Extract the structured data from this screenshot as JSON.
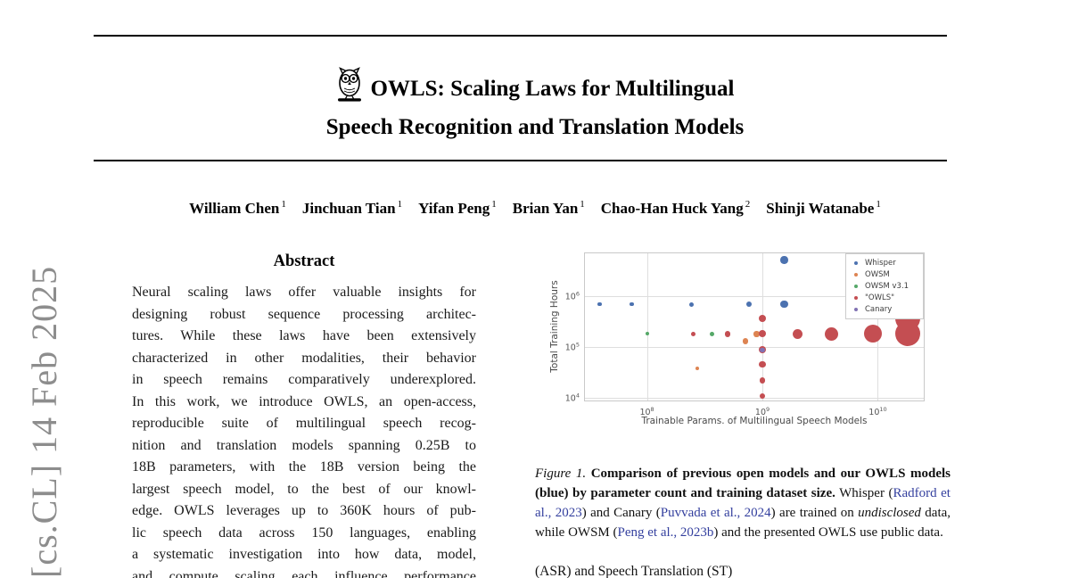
{
  "watermark": "[cs.CL]  14 Feb 2025",
  "title": {
    "line1": "OWLS: Scaling Laws for Multilingual",
    "line2": "Speech Recognition and Translation Models"
  },
  "authors": [
    {
      "name": "William Chen",
      "sup": "1"
    },
    {
      "name": "Jinchuan Tian",
      "sup": "1"
    },
    {
      "name": "Yifan Peng",
      "sup": "1"
    },
    {
      "name": "Brian Yan",
      "sup": "1"
    },
    {
      "name": "Chao-Han Huck Yang",
      "sup": "2"
    },
    {
      "name": "Shinji Watanabe",
      "sup": "1"
    }
  ],
  "abstract": {
    "heading": "Abstract",
    "lines": [
      "Neural scaling laws offer valuable insights for",
      "designing robust sequence processing architec-",
      "tures. While these laws have been extensively",
      "characterized in other modalities, their behavior",
      "in speech remains comparatively underexplored.",
      "In this work, we introduce OWLS, an open-access,",
      "reproducible suite of multilingual speech recog-",
      "nition and translation models spanning 0.25B to",
      "18B parameters, with the 18B version being the",
      "largest speech model, to the best of our knowl-",
      "edge. OWLS leverages up to 360K hours of pub-",
      "lic speech data across 150 languages, enabling",
      "a systematic investigation into how data, model,",
      "and compute scaling each influence performance"
    ]
  },
  "figure_caption": {
    "segments": [
      {
        "text": "Figure 1.",
        "style": "figlabel"
      },
      {
        "text": " ",
        "style": "bold"
      },
      {
        "text": "Comparison of previous open models and our OWLS models (blue) by parameter count and training dataset size.",
        "style": "bold"
      },
      {
        "text": " Whisper (",
        "style": "normal"
      },
      {
        "text": "Radford et al., 2023",
        "style": "link"
      },
      {
        "text": ") and Canary (",
        "style": "normal"
      },
      {
        "text": "Puvvada et al., 2024",
        "style": "link"
      },
      {
        "text": ") are trained on ",
        "style": "normal"
      },
      {
        "text": "undisclosed",
        "style": "italic"
      },
      {
        "text": " data, while OWSM (",
        "style": "normal"
      },
      {
        "text": "Peng et al., 2023b",
        "style": "link"
      },
      {
        "text": ") and the presented OWLS use public data.",
        "style": "normal"
      }
    ]
  },
  "partial_text": "(ASR) and Speech Translation (ST)",
  "colors": {
    "link": "#333f9e",
    "watermark_gray": "#8d8d8d",
    "rule_black": "#000000"
  },
  "chart_data": {
    "type": "scatter",
    "title": "",
    "xlabel": "Trainable Params. of Multilingual Speech Models",
    "ylabel": "Total Training Hours",
    "x_scale": "log",
    "y_scale": "log",
    "x_range": [
      29000000.0,
      25000000000.0
    ],
    "y_range": [
      9000,
      6760000.0
    ],
    "x_ticks": [
      100000000.0,
      1000000000.0,
      10000000000.0
    ],
    "y_ticks": [
      10000.0,
      100000.0,
      1000000.0
    ],
    "x_tick_labels": [
      "10^8",
      "10^9",
      "10^10"
    ],
    "y_tick_labels": [
      "10^4",
      "10^5",
      "10^6"
    ],
    "grid": true,
    "legend_position": "upper right",
    "series": [
      {
        "name": "Whisper",
        "color": "#4c72b0",
        "points": [
          {
            "x": 39000000.0,
            "y": 680000.0,
            "r": 2.2
          },
          {
            "x": 74000000.0,
            "y": 680000.0,
            "r": 2.2
          },
          {
            "x": 244000000.0,
            "y": 680000.0,
            "r": 2.5
          },
          {
            "x": 769000000.0,
            "y": 680000.0,
            "r": 3.2
          },
          {
            "x": 1550000000.0,
            "y": 680000.0,
            "r": 4.2
          },
          {
            "x": 1550000000.0,
            "y": 5000000.0,
            "r": 4.2
          }
        ]
      },
      {
        "name": "OWSM",
        "color": "#dd8452",
        "points": [
          {
            "x": 272000000.0,
            "y": 38000.0,
            "r": 2.2
          },
          {
            "x": 712000000.0,
            "y": 129000.0,
            "r": 3.2
          },
          {
            "x": 889000000.0,
            "y": 180000.0,
            "r": 3.2
          }
        ]
      },
      {
        "name": "OWSM v3.1",
        "color": "#55a868",
        "points": [
          {
            "x": 101000000.0,
            "y": 180000.0,
            "r": 2.0
          },
          {
            "x": 367000000.0,
            "y": 180000.0,
            "r": 2.6
          }
        ]
      },
      {
        "name": "\"OWLS\"",
        "color": "#c44e52",
        "points": [
          {
            "x": 250000000.0,
            "y": 180000.0,
            "r": 2.6
          },
          {
            "x": 500000000.0,
            "y": 180000.0,
            "r": 3.2
          },
          {
            "x": 1000000000.0,
            "y": 360000.0,
            "r": 4.0
          },
          {
            "x": 1000000000.0,
            "y": 180000.0,
            "r": 4.0
          },
          {
            "x": 1000000000.0,
            "y": 90000.0,
            "r": 4.0
          },
          {
            "x": 1000000000.0,
            "y": 45000.0,
            "r": 3.6
          },
          {
            "x": 1000000000.0,
            "y": 22000.0,
            "r": 3.4
          },
          {
            "x": 1000000000.0,
            "y": 11000.0,
            "r": 3.4
          },
          {
            "x": 2000000000.0,
            "y": 180000.0,
            "r": 5.5
          },
          {
            "x": 4000000000.0,
            "y": 180000.0,
            "r": 7.5
          },
          {
            "x": 9000000000.0,
            "y": 180000.0,
            "r": 10
          },
          {
            "x": 18000000000.0,
            "y": 360000.0,
            "r": 14
          },
          {
            "x": 18000000000.0,
            "y": 180000.0,
            "r": 14
          }
        ]
      },
      {
        "name": "Canary",
        "color": "#8172b3",
        "points": [
          {
            "x": 1000000000.0,
            "y": 86000.0,
            "r": 2.6
          }
        ]
      }
    ]
  }
}
